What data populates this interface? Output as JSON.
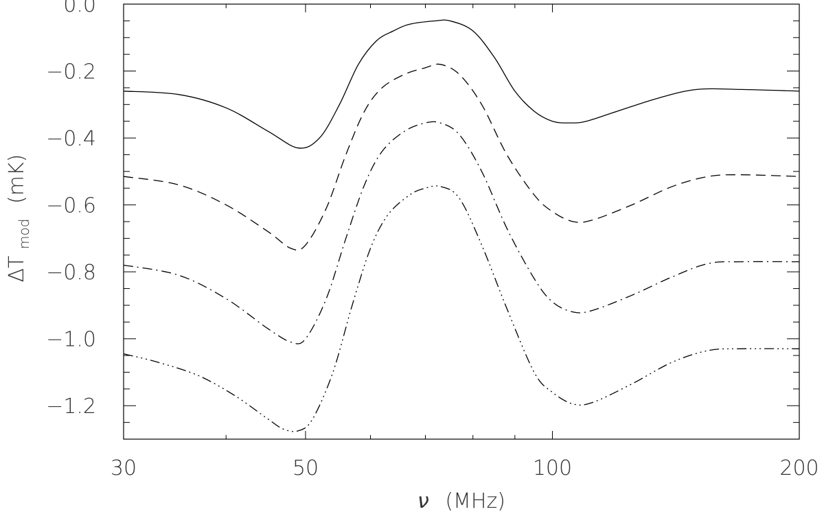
{
  "chart_data": {
    "type": "line",
    "xlabel": {
      "symbol": "ν",
      "unit": "(MHz)"
    },
    "ylabel": {
      "prefix": "ΔT",
      "subscript": "mod",
      "unit": "(mK)"
    },
    "xscale": "log",
    "xlim": [
      30,
      200
    ],
    "ylim": [
      -1.3,
      0.0
    ],
    "x_ticks": [
      30,
      50,
      100,
      200
    ],
    "x_tick_labels": [
      "30",
      "50",
      "100",
      "200"
    ],
    "y_ticks": [
      0.0,
      -0.2,
      -0.4,
      -0.6,
      -0.8,
      -1.0,
      -1.2
    ],
    "y_tick_labels": [
      "0.0",
      "−0.2",
      "−0.4",
      "−0.6",
      "−0.8",
      "−1.0",
      "−1.2"
    ],
    "grid": false,
    "legend": "none",
    "series": [
      {
        "style": "solid",
        "points": [
          [
            30,
            -0.26
          ],
          [
            35,
            -0.27
          ],
          [
            40,
            -0.31
          ],
          [
            45,
            -0.38
          ],
          [
            49,
            -0.43
          ],
          [
            52,
            -0.4
          ],
          [
            55,
            -0.3
          ],
          [
            58,
            -0.18
          ],
          [
            61,
            -0.11
          ],
          [
            64,
            -0.08
          ],
          [
            67,
            -0.06
          ],
          [
            72,
            -0.05
          ],
          [
            75,
            -0.05
          ],
          [
            80,
            -0.08
          ],
          [
            85,
            -0.16
          ],
          [
            90,
            -0.26
          ],
          [
            95,
            -0.32
          ],
          [
            100,
            -0.35
          ],
          [
            105,
            -0.355
          ],
          [
            110,
            -0.35
          ],
          [
            120,
            -0.32
          ],
          [
            135,
            -0.28
          ],
          [
            150,
            -0.255
          ],
          [
            170,
            -0.255
          ],
          [
            200,
            -0.26
          ]
        ]
      },
      {
        "style": "dashed",
        "points": [
          [
            30,
            -0.515
          ],
          [
            35,
            -0.54
          ],
          [
            40,
            -0.6
          ],
          [
            45,
            -0.68
          ],
          [
            48,
            -0.73
          ],
          [
            50,
            -0.72
          ],
          [
            53,
            -0.61
          ],
          [
            56,
            -0.45
          ],
          [
            59,
            -0.32
          ],
          [
            62,
            -0.25
          ],
          [
            66,
            -0.21
          ],
          [
            70,
            -0.19
          ],
          [
            73,
            -0.18
          ],
          [
            77,
            -0.21
          ],
          [
            82,
            -0.3
          ],
          [
            88,
            -0.45
          ],
          [
            95,
            -0.57
          ],
          [
            100,
            -0.62
          ],
          [
            106,
            -0.65
          ],
          [
            112,
            -0.645
          ],
          [
            125,
            -0.6
          ],
          [
            140,
            -0.545
          ],
          [
            155,
            -0.515
          ],
          [
            170,
            -0.51
          ],
          [
            200,
            -0.515
          ]
        ]
      },
      {
        "style": "dash-dot",
        "points": [
          [
            30,
            -0.78
          ],
          [
            35,
            -0.81
          ],
          [
            40,
            -0.88
          ],
          [
            45,
            -0.97
          ],
          [
            48,
            -1.01
          ],
          [
            50,
            -1.0
          ],
          [
            53,
            -0.88
          ],
          [
            56,
            -0.7
          ],
          [
            59,
            -0.54
          ],
          [
            62,
            -0.44
          ],
          [
            66,
            -0.38
          ],
          [
            70,
            -0.355
          ],
          [
            73,
            -0.355
          ],
          [
            77,
            -0.39
          ],
          [
            82,
            -0.5
          ],
          [
            88,
            -0.67
          ],
          [
            95,
            -0.82
          ],
          [
            100,
            -0.89
          ],
          [
            106,
            -0.92
          ],
          [
            112,
            -0.915
          ],
          [
            125,
            -0.87
          ],
          [
            140,
            -0.815
          ],
          [
            155,
            -0.775
          ],
          [
            170,
            -0.77
          ],
          [
            200,
            -0.77
          ]
        ]
      },
      {
        "style": "dash-dot-dot-dot",
        "points": [
          [
            30,
            -1.045
          ],
          [
            33,
            -1.07
          ],
          [
            37,
            -1.11
          ],
          [
            41,
            -1.17
          ],
          [
            45,
            -1.24
          ],
          [
            47,
            -1.27
          ],
          [
            49,
            -1.275
          ],
          [
            51,
            -1.24
          ],
          [
            54,
            -1.1
          ],
          [
            57,
            -0.9
          ],
          [
            60,
            -0.73
          ],
          [
            63,
            -0.63
          ],
          [
            67,
            -0.57
          ],
          [
            70,
            -0.55
          ],
          [
            73,
            -0.545
          ],
          [
            77,
            -0.58
          ],
          [
            82,
            -0.72
          ],
          [
            88,
            -0.91
          ],
          [
            95,
            -1.1
          ],
          [
            100,
            -1.16
          ],
          [
            106,
            -1.195
          ],
          [
            112,
            -1.19
          ],
          [
            125,
            -1.135
          ],
          [
            140,
            -1.07
          ],
          [
            155,
            -1.035
          ],
          [
            170,
            -1.03
          ],
          [
            200,
            -1.03
          ]
        ]
      }
    ]
  }
}
